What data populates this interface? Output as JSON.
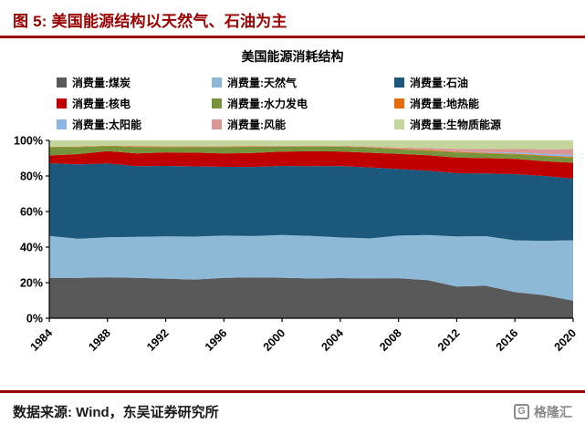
{
  "colors": {
    "accent": "#990000",
    "axis": "#000000",
    "logo_gray": "#8a8a8a"
  },
  "header": {
    "title": "图 5:  美国能源结构以天然气、石油为主"
  },
  "footer": {
    "source": "数据来源: Wind，东吴证券研究所",
    "logo_mark": "G",
    "logo_text": "格隆汇"
  },
  "chart_data": {
    "type": "area",
    "stacked": true,
    "percent_normalized": true,
    "title": "美国能源消耗结构",
    "legend_position": "top",
    "grid": false,
    "ylim": [
      0,
      100
    ],
    "y_ticks": [
      {
        "v": 0,
        "label": "0%"
      },
      {
        "v": 20,
        "label": "20%"
      },
      {
        "v": 40,
        "label": "40%"
      },
      {
        "v": 60,
        "label": "60%"
      },
      {
        "v": 80,
        "label": "80%"
      },
      {
        "v": 100,
        "label": "100%"
      }
    ],
    "x": [
      1984,
      1986,
      1988,
      1990,
      1992,
      1994,
      1996,
      1998,
      2000,
      2002,
      2004,
      2006,
      2008,
      2010,
      2012,
      2014,
      2016,
      2018,
      2020
    ],
    "x_tick_labels": [
      "1984",
      "1988",
      "1992",
      "1996",
      "2000",
      "2004",
      "2008",
      "2012",
      "2016",
      "2020"
    ],
    "series": [
      {
        "id": "coal",
        "name": "消费量:煤炭",
        "color": "#595959",
        "values": [
          22.5,
          22.6,
          23.0,
          22.7,
          22.5,
          21.9,
          22.8,
          22.9,
          22.8,
          22.3,
          22.6,
          22.3,
          22.4,
          21.3,
          17.3,
          18.0,
          14.6,
          13.0,
          9.9
        ]
      },
      {
        "id": "natural-gas",
        "name": "消费量:天然气",
        "color": "#8DB8D6",
        "values": [
          23.4,
          22.0,
          22.4,
          23.0,
          24.0,
          24.3,
          24.0,
          23.2,
          24.1,
          23.8,
          22.9,
          22.4,
          23.8,
          25.2,
          27.4,
          27.5,
          29.0,
          30.6,
          34.0
        ]
      },
      {
        "id": "oil",
        "name": "消费量:石油",
        "color": "#1B587C",
        "values": [
          40.6,
          41.8,
          41.5,
          39.7,
          40.0,
          39.8,
          38.9,
          38.8,
          38.9,
          39.2,
          40.2,
          39.8,
          37.2,
          36.0,
          34.7,
          34.8,
          37.0,
          36.5,
          34.7
        ]
      },
      {
        "id": "nuclear",
        "name": "消费量:核电",
        "color": "#C00000",
        "values": [
          4.3,
          5.7,
          6.9,
          7.2,
          7.7,
          7.8,
          7.6,
          7.9,
          8.1,
          8.3,
          8.2,
          8.2,
          8.5,
          8.6,
          8.5,
          8.5,
          8.6,
          8.3,
          8.9
        ]
      },
      {
        "id": "hydro",
        "name": "消费量:水力发电",
        "color": "#77933C",
        "values": [
          4.6,
          4.0,
          2.8,
          3.6,
          3.0,
          3.1,
          3.7,
          3.4,
          2.8,
          2.7,
          2.7,
          2.9,
          2.5,
          2.6,
          2.8,
          2.5,
          2.5,
          2.9,
          2.8
        ]
      },
      {
        "id": "geothermal",
        "name": "消费量:地热能",
        "color": "#E46C0A",
        "values": [
          0.2,
          0.2,
          0.2,
          0.4,
          0.4,
          0.4,
          0.3,
          0.3,
          0.3,
          0.3,
          0.3,
          0.3,
          0.4,
          0.4,
          0.4,
          0.4,
          0.4,
          0.4,
          0.5
        ]
      },
      {
        "id": "solar",
        "name": "消费量:太阳能",
        "color": "#8EB4E3",
        "values": [
          0.0,
          0.0,
          0.0,
          0.1,
          0.1,
          0.1,
          0.1,
          0.1,
          0.1,
          0.1,
          0.1,
          0.1,
          0.1,
          0.1,
          0.2,
          0.4,
          0.6,
          0.9,
          1.2
        ]
      },
      {
        "id": "wind",
        "name": "消费量:风能",
        "color": "#D99694",
        "values": [
          0.0,
          0.0,
          0.0,
          0.0,
          0.0,
          0.0,
          0.0,
          0.0,
          0.1,
          0.1,
          0.1,
          0.3,
          0.6,
          0.9,
          1.4,
          1.7,
          2.1,
          2.5,
          3.2
        ]
      },
      {
        "id": "biomass",
        "name": "消费量:生物质能源",
        "color": "#C3D69B",
        "values": [
          3.6,
          3.5,
          3.0,
          3.2,
          3.3,
          3.3,
          3.3,
          3.2,
          3.0,
          2.9,
          3.0,
          3.3,
          3.9,
          4.3,
          4.6,
          4.8,
          4.7,
          5.0,
          4.9
        ]
      }
    ]
  }
}
